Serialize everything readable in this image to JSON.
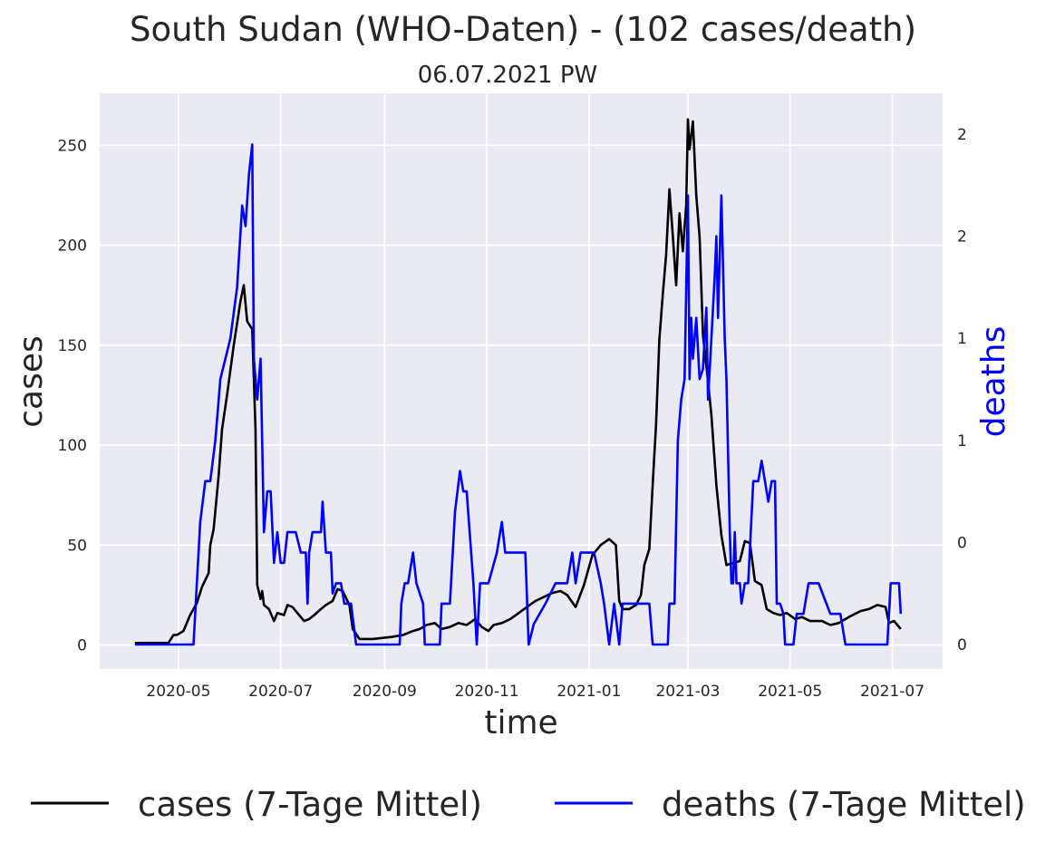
{
  "chart_data": {
    "type": "line",
    "title": "South Sudan (WHO-Daten) - (102 cases/death)",
    "subtitle": "06.07.2021 PW",
    "xlabel": "time",
    "ylabel_left": "cases",
    "ylabel_right": "deaths",
    "x_ticks": [
      "2020-05",
      "2020-07",
      "2020-09",
      "2020-11",
      "2021-01",
      "2021-03",
      "2021-05",
      "2021-07"
    ],
    "y_ticks_left": [
      "0",
      "50",
      "100",
      "150",
      "200",
      "250"
    ],
    "y_ticks_right": [
      "0",
      "0",
      "1",
      "1",
      "2",
      "2"
    ],
    "ylim_left": [
      -12,
      276
    ],
    "ylim_right": [
      -0.12,
      2.7
    ],
    "xlim": [
      "2020-03-15",
      "2021-07-31"
    ],
    "grid": true,
    "legend_position": "bottom",
    "series": [
      {
        "name": "cases (7-Tage Mittel)",
        "color": "#000000",
        "axis": "left",
        "points": [
          [
            "2020-04-05",
            1
          ],
          [
            "2020-04-12",
            1
          ],
          [
            "2020-04-25",
            1
          ],
          [
            "2020-04-28",
            5
          ],
          [
            "2020-04-30",
            5
          ],
          [
            "2020-05-04",
            7
          ],
          [
            "2020-05-08",
            15
          ],
          [
            "2020-05-12",
            21
          ],
          [
            "2020-05-15",
            29
          ],
          [
            "2020-05-19",
            36
          ],
          [
            "2020-05-20",
            50
          ],
          [
            "2020-05-22",
            58
          ],
          [
            "2020-05-25",
            85
          ],
          [
            "2020-05-27",
            108
          ],
          [
            "2020-05-30",
            125
          ],
          [
            "2020-06-03",
            150
          ],
          [
            "2020-06-07",
            172
          ],
          [
            "2020-06-09",
            180
          ],
          [
            "2020-06-11",
            162
          ],
          [
            "2020-06-14",
            158
          ],
          [
            "2020-06-16",
            108
          ],
          [
            "2020-06-17",
            30
          ],
          [
            "2020-06-19",
            23
          ],
          [
            "2020-06-20",
            27
          ],
          [
            "2020-06-21",
            20
          ],
          [
            "2020-06-24",
            18
          ],
          [
            "2020-06-27",
            12
          ],
          [
            "2020-06-29",
            16
          ],
          [
            "2020-07-03",
            15
          ],
          [
            "2020-07-05",
            20
          ],
          [
            "2020-07-08",
            19
          ],
          [
            "2020-07-12",
            15
          ],
          [
            "2020-07-15",
            12
          ],
          [
            "2020-07-18",
            13
          ],
          [
            "2020-07-21",
            15
          ],
          [
            "2020-07-25",
            18
          ],
          [
            "2020-07-28",
            20
          ],
          [
            "2020-08-01",
            22
          ],
          [
            "2020-08-04",
            28
          ],
          [
            "2020-08-07",
            27
          ],
          [
            "2020-08-11",
            20
          ],
          [
            "2020-08-13",
            8
          ],
          [
            "2020-08-17",
            3
          ],
          [
            "2020-08-25",
            3
          ],
          [
            "2020-09-05",
            4
          ],
          [
            "2020-09-12",
            5
          ],
          [
            "2020-09-18",
            7
          ],
          [
            "2020-09-22",
            8
          ],
          [
            "2020-09-26",
            10
          ],
          [
            "2020-10-01",
            11
          ],
          [
            "2020-10-05",
            8
          ],
          [
            "2020-10-10",
            9
          ],
          [
            "2020-10-15",
            11
          ],
          [
            "2020-10-20",
            10
          ],
          [
            "2020-10-25",
            13
          ],
          [
            "2020-10-29",
            9
          ],
          [
            "2020-11-02",
            7
          ],
          [
            "2020-11-05",
            10
          ],
          [
            "2020-11-10",
            11
          ],
          [
            "2020-11-15",
            13
          ],
          [
            "2020-11-20",
            16
          ],
          [
            "2020-11-25",
            19
          ],
          [
            "2020-11-30",
            22
          ],
          [
            "2020-12-05",
            24
          ],
          [
            "2020-12-10",
            26
          ],
          [
            "2020-12-15",
            27
          ],
          [
            "2020-12-19",
            25
          ],
          [
            "2020-12-24",
            19
          ],
          [
            "2020-12-29",
            30
          ],
          [
            "2021-01-03",
            45
          ],
          [
            "2021-01-08",
            50
          ],
          [
            "2021-01-13",
            53
          ],
          [
            "2021-01-17",
            50
          ],
          [
            "2021-01-19",
            22
          ],
          [
            "2021-01-21",
            18
          ],
          [
            "2021-01-25",
            18
          ],
          [
            "2021-01-29",
            20
          ],
          [
            "2021-02-01",
            25
          ],
          [
            "2021-02-03",
            40
          ],
          [
            "2021-02-06",
            48
          ],
          [
            "2021-02-08",
            80
          ],
          [
            "2021-02-10",
            110
          ],
          [
            "2021-02-12",
            153
          ],
          [
            "2021-02-14",
            175
          ],
          [
            "2021-02-16",
            195
          ],
          [
            "2021-02-18",
            228
          ],
          [
            "2021-02-20",
            205
          ],
          [
            "2021-02-22",
            180
          ],
          [
            "2021-02-24",
            216
          ],
          [
            "2021-02-26",
            197
          ],
          [
            "2021-02-28",
            220
          ],
          [
            "2021-03-01",
            263
          ],
          [
            "2021-03-02",
            248
          ],
          [
            "2021-03-04",
            262
          ],
          [
            "2021-03-06",
            225
          ],
          [
            "2021-03-08",
            204
          ],
          [
            "2021-03-10",
            155
          ],
          [
            "2021-03-12",
            140
          ],
          [
            "2021-03-15",
            115
          ],
          [
            "2021-03-18",
            80
          ],
          [
            "2021-03-21",
            55
          ],
          [
            "2021-03-24",
            40
          ],
          [
            "2021-03-28",
            41
          ],
          [
            "2021-04-01",
            42
          ],
          [
            "2021-04-04",
            52
          ],
          [
            "2021-04-07",
            51
          ],
          [
            "2021-04-10",
            32
          ],
          [
            "2021-04-14",
            30
          ],
          [
            "2021-04-17",
            18
          ],
          [
            "2021-04-21",
            16
          ],
          [
            "2021-04-25",
            15
          ],
          [
            "2021-04-29",
            16
          ],
          [
            "2021-05-04",
            13
          ],
          [
            "2021-05-08",
            14
          ],
          [
            "2021-05-13",
            12
          ],
          [
            "2021-05-20",
            12
          ],
          [
            "2021-05-25",
            10
          ],
          [
            "2021-05-30",
            11
          ],
          [
            "2021-06-05",
            14
          ],
          [
            "2021-06-12",
            17
          ],
          [
            "2021-06-17",
            18
          ],
          [
            "2021-06-22",
            20
          ],
          [
            "2021-06-27",
            19
          ],
          [
            "2021-06-29",
            11
          ],
          [
            "2021-07-02",
            12
          ],
          [
            "2021-07-04",
            10
          ],
          [
            "2021-07-06",
            8
          ]
        ]
      },
      {
        "name": "deaths (7-Tage Mittel)",
        "color": "#0000ff",
        "axis": "right",
        "points": [
          [
            "2020-04-05",
            0
          ],
          [
            "2020-04-30",
            0
          ],
          [
            "2020-05-10",
            0
          ],
          [
            "2020-05-14",
            0.6
          ],
          [
            "2020-05-17",
            0.8
          ],
          [
            "2020-05-20",
            0.8
          ],
          [
            "2020-05-23",
            1.0
          ],
          [
            "2020-05-26",
            1.3
          ],
          [
            "2020-05-29",
            1.4
          ],
          [
            "2020-06-01",
            1.5
          ],
          [
            "2020-06-05",
            1.75
          ],
          [
            "2020-06-08",
            2.15
          ],
          [
            "2020-06-10",
            2.05
          ],
          [
            "2020-06-12",
            2.3
          ],
          [
            "2020-06-14",
            2.45
          ],
          [
            "2020-06-15",
            1.4
          ],
          [
            "2020-06-17",
            1.2
          ],
          [
            "2020-06-19",
            1.4
          ],
          [
            "2020-06-21",
            0.55
          ],
          [
            "2020-06-23",
            0.75
          ],
          [
            "2020-06-25",
            0.75
          ],
          [
            "2020-06-27",
            0.4
          ],
          [
            "2020-06-29",
            0.55
          ],
          [
            "2020-07-01",
            0.4
          ],
          [
            "2020-07-03",
            0.4
          ],
          [
            "2020-07-05",
            0.55
          ],
          [
            "2020-07-10",
            0.55
          ],
          [
            "2020-07-13",
            0.45
          ],
          [
            "2020-07-16",
            0.45
          ],
          [
            "2020-07-17",
            0.2
          ],
          [
            "2020-07-18",
            0.45
          ],
          [
            "2020-07-20",
            0.55
          ],
          [
            "2020-07-25",
            0.55
          ],
          [
            "2020-07-26",
            0.7
          ],
          [
            "2020-07-28",
            0.45
          ],
          [
            "2020-07-31",
            0.45
          ],
          [
            "2020-08-01",
            0.25
          ],
          [
            "2020-08-03",
            0.3
          ],
          [
            "2020-08-06",
            0.3
          ],
          [
            "2020-08-08",
            0.2
          ],
          [
            "2020-08-12",
            0.2
          ],
          [
            "2020-08-15",
            0
          ],
          [
            "2020-09-10",
            0
          ],
          [
            "2020-09-11",
            0.2
          ],
          [
            "2020-09-13",
            0.3
          ],
          [
            "2020-09-15",
            0.3
          ],
          [
            "2020-09-18",
            0.45
          ],
          [
            "2020-09-20",
            0.3
          ],
          [
            "2020-09-24",
            0.2
          ],
          [
            "2020-09-25",
            0
          ],
          [
            "2020-09-29",
            0
          ],
          [
            "2020-10-04",
            0
          ],
          [
            "2020-10-05",
            0.2
          ],
          [
            "2020-10-10",
            0.2
          ],
          [
            "2020-10-13",
            0.65
          ],
          [
            "2020-10-16",
            0.85
          ],
          [
            "2020-10-18",
            0.75
          ],
          [
            "2020-10-20",
            0.75
          ],
          [
            "2020-10-24",
            0.3
          ],
          [
            "2020-10-26",
            0
          ],
          [
            "2020-10-28",
            0.3
          ],
          [
            "2020-11-02",
            0.3
          ],
          [
            "2020-11-07",
            0.45
          ],
          [
            "2020-11-10",
            0.6
          ],
          [
            "2020-11-12",
            0.45
          ],
          [
            "2020-11-20",
            0.45
          ],
          [
            "2020-11-24",
            0.45
          ],
          [
            "2020-11-26",
            0
          ],
          [
            "2020-11-29",
            0.1
          ],
          [
            "2020-12-06",
            0.2
          ],
          [
            "2020-12-12",
            0.3
          ],
          [
            "2020-12-19",
            0.3
          ],
          [
            "2020-12-22",
            0.45
          ],
          [
            "2020-12-24",
            0.3
          ],
          [
            "2020-12-27",
            0.45
          ],
          [
            "2020-12-30",
            0.45
          ],
          [
            "2021-01-04",
            0.45
          ],
          [
            "2021-01-08",
            0.3
          ],
          [
            "2021-01-10",
            0.2
          ],
          [
            "2021-01-13",
            0
          ],
          [
            "2021-01-16",
            0.2
          ],
          [
            "2021-01-19",
            0
          ],
          [
            "2021-01-21",
            0.2
          ],
          [
            "2021-01-25",
            0.2
          ],
          [
            "2021-01-30",
            0.2
          ],
          [
            "2021-02-06",
            0.2
          ],
          [
            "2021-02-08",
            0
          ],
          [
            "2021-02-12",
            0
          ],
          [
            "2021-02-17",
            0
          ],
          [
            "2021-02-18",
            0.2
          ],
          [
            "2021-02-21",
            0.2
          ],
          [
            "2021-02-23",
            1.0
          ],
          [
            "2021-02-25",
            1.2
          ],
          [
            "2021-02-27",
            1.3
          ],
          [
            "2021-03-01",
            2.2
          ],
          [
            "2021-03-02",
            1.3
          ],
          [
            "2021-03-03",
            1.6
          ],
          [
            "2021-03-04",
            1.4
          ],
          [
            "2021-03-06",
            1.6
          ],
          [
            "2021-03-08",
            1.3
          ],
          [
            "2021-03-10",
            1.35
          ],
          [
            "2021-03-12",
            1.65
          ],
          [
            "2021-03-13",
            1.2
          ],
          [
            "2021-03-15",
            1.5
          ],
          [
            "2021-03-17",
            1.8
          ],
          [
            "2021-03-18",
            2.0
          ],
          [
            "2021-03-19",
            1.6
          ],
          [
            "2021-03-21",
            2.2
          ],
          [
            "2021-03-23",
            1.5
          ],
          [
            "2021-03-24",
            1.3
          ],
          [
            "2021-03-26",
            0.55
          ],
          [
            "2021-03-27",
            0.3
          ],
          [
            "2021-03-28",
            0.3
          ],
          [
            "2021-03-29",
            0.55
          ],
          [
            "2021-03-30",
            0.3
          ],
          [
            "2021-04-01",
            0.3
          ],
          [
            "2021-04-02",
            0.2
          ],
          [
            "2021-04-04",
            0.3
          ],
          [
            "2021-04-06",
            0.3
          ],
          [
            "2021-04-09",
            0.8
          ],
          [
            "2021-04-12",
            0.8
          ],
          [
            "2021-04-14",
            0.9
          ],
          [
            "2021-04-16",
            0.8
          ],
          [
            "2021-04-18",
            0.7
          ],
          [
            "2021-04-20",
            0.8
          ],
          [
            "2021-04-22",
            0.8
          ],
          [
            "2021-04-23",
            0.2
          ],
          [
            "2021-04-25",
            0.2
          ],
          [
            "2021-04-27",
            0.15
          ],
          [
            "2021-04-28",
            0
          ],
          [
            "2021-05-03",
            0
          ],
          [
            "2021-05-05",
            0.15
          ],
          [
            "2021-05-09",
            0.15
          ],
          [
            "2021-05-12",
            0.3
          ],
          [
            "2021-05-18",
            0.3
          ],
          [
            "2021-05-25",
            0.15
          ],
          [
            "2021-05-31",
            0.15
          ],
          [
            "2021-06-03",
            0
          ],
          [
            "2021-06-07",
            0
          ],
          [
            "2021-06-28",
            0
          ],
          [
            "2021-06-30",
            0.3
          ],
          [
            "2021-07-02",
            0.3
          ],
          [
            "2021-07-05",
            0.3
          ],
          [
            "2021-07-06",
            0.15
          ]
        ]
      }
    ]
  }
}
